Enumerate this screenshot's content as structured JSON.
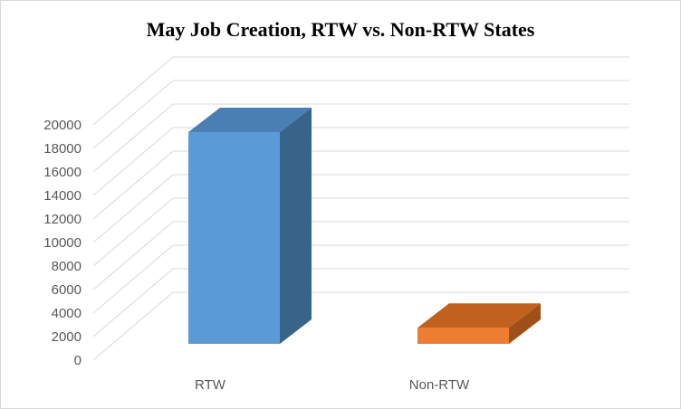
{
  "chart_data": {
    "type": "bar",
    "title": "May Job Creation, RTW vs. Non-RTW States",
    "categories": [
      "RTW",
      "Non-RTW"
    ],
    "values": [
      18400,
      1400
    ],
    "ylim": [
      0,
      20000
    ],
    "yticks": [
      0,
      2000,
      4000,
      6000,
      8000,
      10000,
      12000,
      14000,
      16000,
      18000,
      20000
    ],
    "grid": true,
    "style": "3d-column",
    "colors": {
      "RTW": {
        "front": "#5b9bd5",
        "top": "#4a7fb3",
        "side": "#386489"
      },
      "Non-RTW": {
        "front": "#ed7d31",
        "top": "#c0621e",
        "side": "#9e5019"
      }
    }
  }
}
